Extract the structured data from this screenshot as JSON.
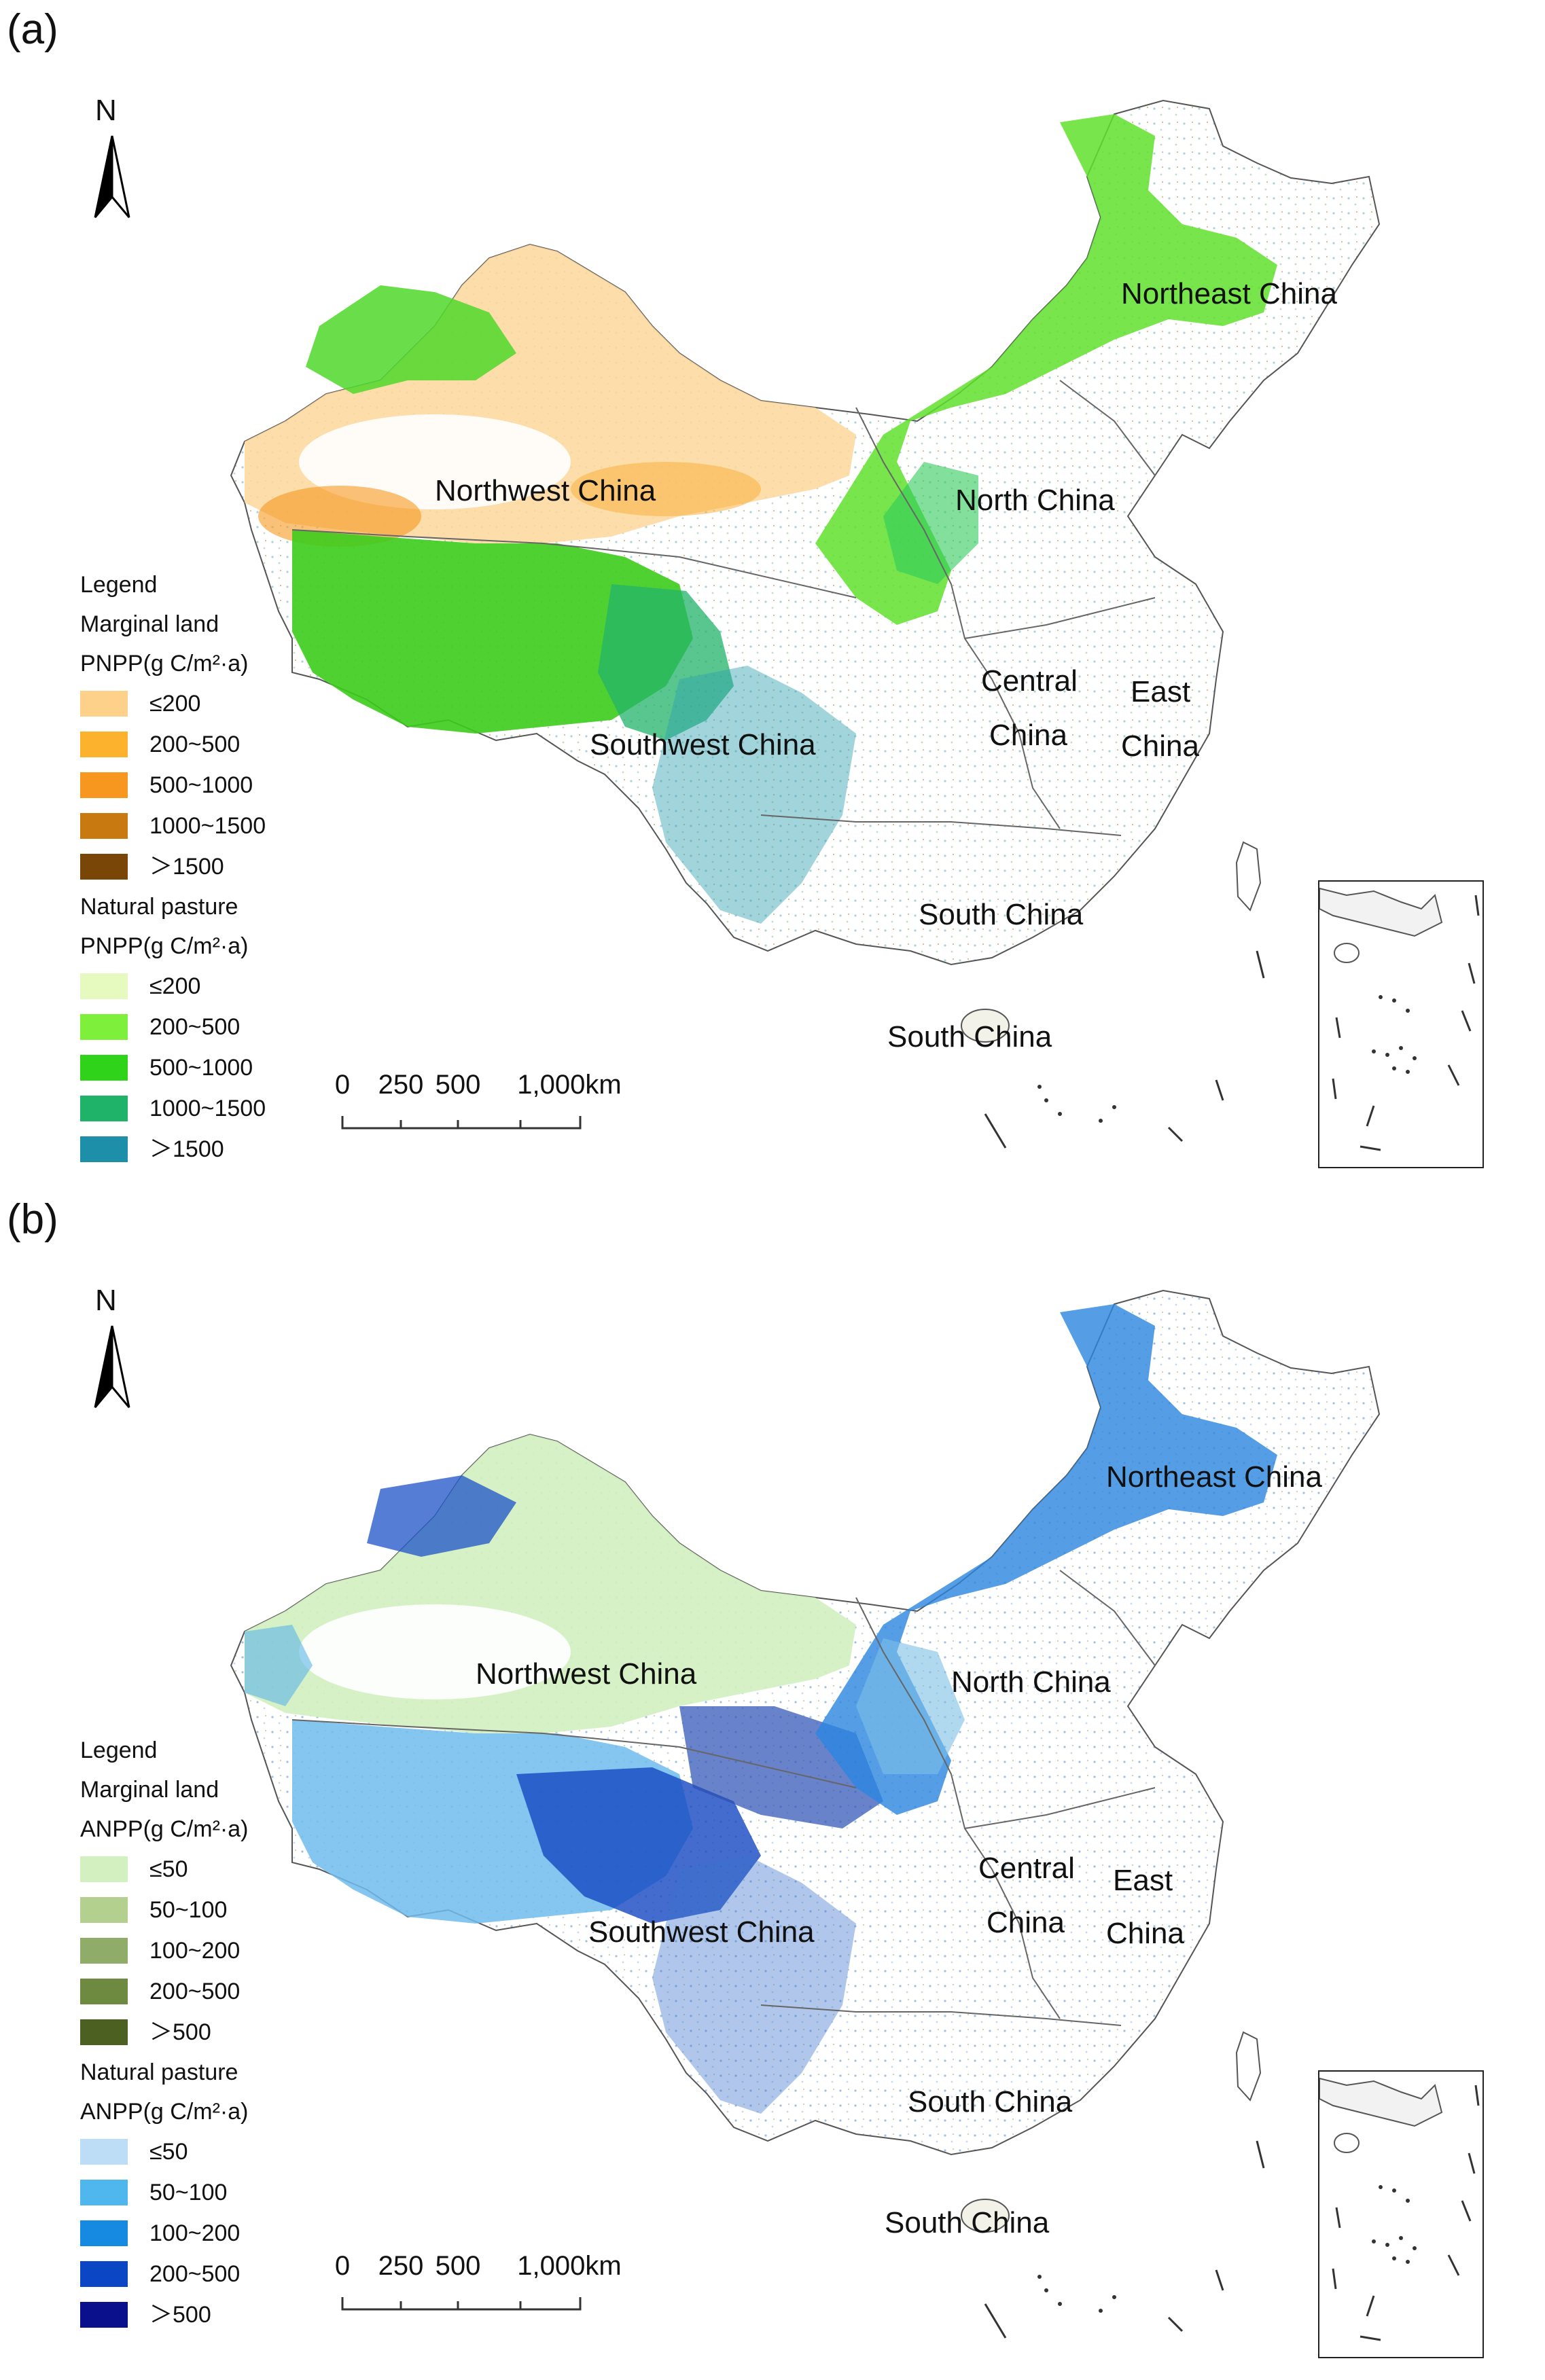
{
  "panels": [
    {
      "label": "(a)",
      "north_letter": "N",
      "legend": {
        "title": "Legend",
        "group1_title": "Marginal land",
        "group1_unit": "PNPP(g C/m²·a)",
        "group1_items": [
          {
            "label": "≤200",
            "color": "#fdd18a"
          },
          {
            "label": "200~500",
            "color": "#fdb22d"
          },
          {
            "label": "500~1000",
            "color": "#f79720"
          },
          {
            "label": "1000~1500",
            "color": "#c8790f"
          },
          {
            "label": "＞1500",
            "color": "#7a4608"
          }
        ],
        "group2_title": "Natural pasture",
        "group2_unit": "PNPP(g C/m²·a)",
        "group2_items": [
          {
            "label": "≤200",
            "color": "#e6fabf"
          },
          {
            "label": "200~500",
            "color": "#7ef03c"
          },
          {
            "label": "500~1000",
            "color": "#2fd41a"
          },
          {
            "label": "1000~1500",
            "color": "#1fb36a"
          },
          {
            "label": "＞1500",
            "color": "#1d8fa8"
          }
        ]
      },
      "regions": [
        "Northeast China",
        "Northwest China",
        "North China",
        "Central",
        "China",
        "East",
        "China",
        "Southwest China",
        "South China",
        "South China"
      ],
      "scale": {
        "labels": [
          "0",
          "250",
          "500",
          "1,000km"
        ]
      }
    },
    {
      "label": "(b)",
      "north_letter": "N",
      "legend": {
        "title": "Legend",
        "group1_title": "Marginal land",
        "group1_unit": "ANPP(g C/m²·a)",
        "group1_items": [
          {
            "label": "≤50",
            "color": "#d3f1c0"
          },
          {
            "label": "50~100",
            "color": "#b3d08e"
          },
          {
            "label": "100~200",
            "color": "#8fad68"
          },
          {
            "label": "200~500",
            "color": "#6e8a41"
          },
          {
            "label": "＞500",
            "color": "#4b6021"
          }
        ],
        "group2_title": "Natural pasture",
        "group2_unit": "ANPP(g C/m²·a)",
        "group2_items": [
          {
            "label": "≤50",
            "color": "#bddcf5"
          },
          {
            "label": "50~100",
            "color": "#4fb7ee"
          },
          {
            "label": "100~200",
            "color": "#158ae0"
          },
          {
            "label": "200~500",
            "color": "#0b47c4"
          },
          {
            "label": "＞500",
            "color": "#0a0f8c"
          }
        ]
      },
      "regions": [
        "Northeast China",
        "Northwest China",
        "North China",
        "Central",
        "China",
        "East",
        "China",
        "Southwest China",
        "South China",
        "South China"
      ],
      "scale": {
        "labels": [
          "0",
          "250",
          "500",
          "1,000km"
        ]
      }
    }
  ]
}
